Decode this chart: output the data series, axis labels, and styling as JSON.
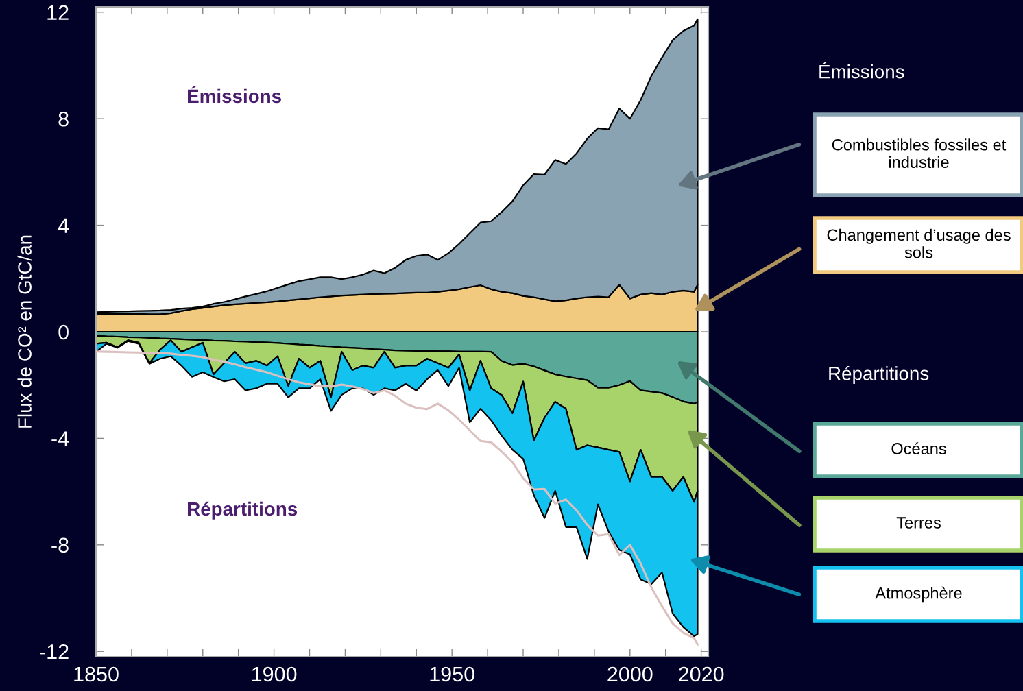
{
  "chart_data": [
    {
      "type": "area",
      "stacked": true,
      "ylabel": "Flux de CO² en GtC/an",
      "x": [
        1850,
        1853,
        1856,
        1859,
        1862,
        1865,
        1868,
        1871,
        1874,
        1877,
        1880,
        1883,
        1886,
        1889,
        1892,
        1895,
        1898,
        1901,
        1904,
        1907,
        1910,
        1913,
        1916,
        1919,
        1922,
        1925,
        1928,
        1931,
        1934,
        1937,
        1940,
        1943,
        1946,
        1949,
        1952,
        1955,
        1958,
        1961,
        1964,
        1967,
        1970,
        1973,
        1976,
        1979,
        1982,
        1985,
        1988,
        1991,
        1994,
        1997,
        2000,
        2003,
        2006,
        2009,
        2012,
        2015,
        2018,
        2019
      ],
      "xlim": [
        1850,
        2022
      ],
      "xticks": [
        1850,
        {
          "value": 1860,
          "label": null
        },
        {
          "value": 1870,
          "label": null
        },
        {
          "value": 1880,
          "label": null
        },
        {
          "value": 1890,
          "label": null
        },
        1900,
        {
          "value": 1910,
          "label": null
        },
        {
          "value": 1920,
          "label": null
        },
        {
          "value": 1930,
          "label": null
        },
        {
          "value": 1940,
          "label": null
        },
        1950,
        {
          "value": 1960,
          "label": null
        },
        {
          "value": 1970,
          "label": null
        },
        {
          "value": 1980,
          "label": null
        },
        {
          "value": 1990,
          "label": null
        },
        2000,
        {
          "value": 2010,
          "label": null
        },
        2020
      ],
      "ylim": [
        -12.2,
        12.2
      ],
      "yticks": [
        -12,
        -8,
        -4,
        0,
        4,
        8,
        12
      ],
      "legend": "right",
      "series": [
        {
          "name": "Changement d’usage des sols",
          "color": "#f1c97f",
          "values": [
            0.67,
            0.67,
            0.67,
            0.67,
            0.67,
            0.66,
            0.66,
            0.7,
            0.78,
            0.85,
            0.9,
            0.95,
            1.0,
            1.03,
            1.06,
            1.09,
            1.11,
            1.14,
            1.18,
            1.22,
            1.26,
            1.3,
            1.33,
            1.36,
            1.38,
            1.4,
            1.42,
            1.43,
            1.44,
            1.46,
            1.47,
            1.47,
            1.5,
            1.55,
            1.6,
            1.68,
            1.75,
            1.6,
            1.5,
            1.45,
            1.35,
            1.3,
            1.22,
            1.15,
            1.18,
            1.25,
            1.3,
            1.32,
            1.3,
            1.77,
            1.25,
            1.4,
            1.45,
            1.4,
            1.5,
            1.55,
            1.5,
            1.77
          ]
        },
        {
          "name": "Combustibles fossiles et industrie",
          "color": "#8aa3b3",
          "values": [
            0.07,
            0.08,
            0.09,
            0.1,
            0.11,
            0.13,
            0.14,
            0.12,
            0.09,
            0.05,
            0.05,
            0.1,
            0.12,
            0.19,
            0.27,
            0.33,
            0.41,
            0.51,
            0.6,
            0.68,
            0.71,
            0.75,
            0.72,
            0.62,
            0.67,
            0.75,
            0.88,
            0.77,
            0.96,
            1.24,
            1.38,
            1.43,
            1.2,
            1.4,
            1.7,
            2.02,
            2.35,
            2.55,
            3.0,
            3.45,
            4.15,
            4.62,
            4.68,
            5.3,
            5.12,
            5.45,
            5.95,
            6.33,
            6.3,
            6.61,
            6.75,
            7.3,
            8.15,
            8.9,
            9.45,
            9.75,
            10.0,
            9.97
          ]
        }
      ],
      "annotations": [
        "Émissions",
        "Émissions"
      ]
    },
    {
      "type": "area",
      "stacked": true,
      "x": [
        1850,
        1853,
        1856,
        1859,
        1862,
        1865,
        1868,
        1871,
        1874,
        1877,
        1880,
        1883,
        1886,
        1889,
        1892,
        1895,
        1898,
        1901,
        1904,
        1907,
        1910,
        1913,
        1916,
        1919,
        1922,
        1925,
        1928,
        1931,
        1934,
        1937,
        1940,
        1943,
        1946,
        1949,
        1952,
        1955,
        1958,
        1961,
        1964,
        1967,
        1970,
        1973,
        1976,
        1979,
        1982,
        1985,
        1988,
        1991,
        1994,
        1997,
        2000,
        2003,
        2006,
        2009,
        2012,
        2015,
        2018,
        2019
      ],
      "xlim": [
        1850,
        2022
      ],
      "ylim": [
        -12.2,
        12.2
      ],
      "tick_labels": false,
      "legend": "right",
      "series": [
        {
          "name": "Océans",
          "color": "#5aa898",
          "values": [
            -0.15,
            -0.17,
            -0.18,
            -0.2,
            -0.21,
            -0.23,
            -0.25,
            -0.26,
            -0.28,
            -0.3,
            -0.31,
            -0.33,
            -0.34,
            -0.36,
            -0.37,
            -0.39,
            -0.4,
            -0.42,
            -0.45,
            -0.48,
            -0.5,
            -0.53,
            -0.55,
            -0.58,
            -0.6,
            -0.62,
            -0.65,
            -0.67,
            -0.7,
            -0.71,
            -0.72,
            -0.72,
            -0.73,
            -0.73,
            -0.74,
            -0.74,
            -0.74,
            -0.75,
            -1.1,
            -1.25,
            -1.2,
            -1.3,
            -1.45,
            -1.6,
            -1.68,
            -1.75,
            -1.82,
            -2.1,
            -2.1,
            -2.0,
            -1.85,
            -2.2,
            -2.25,
            -2.3,
            -2.45,
            -2.62,
            -2.7,
            -2.64
          ]
        },
        {
          "name": "Terres",
          "color": "#a8d26a",
          "values": [
            -0.3,
            -0.24,
            -0.4,
            -0.12,
            -0.2,
            -0.95,
            -0.42,
            -0.06,
            -0.47,
            -0.28,
            -0.1,
            -1.27,
            -0.84,
            -0.39,
            -0.81,
            -0.7,
            -0.87,
            -0.5,
            -1.58,
            -0.53,
            -0.85,
            -0.56,
            -1.91,
            -0.17,
            -0.84,
            -0.65,
            -0.7,
            -0.08,
            -0.65,
            -0.56,
            -0.55,
            -0.29,
            -0.45,
            -0.62,
            -0.11,
            -1.47,
            -0.35,
            -1.37,
            -1.28,
            -1.81,
            -0.67,
            -2.78,
            -1.78,
            -1.03,
            -1.21,
            -2.68,
            -2.44,
            -2.24,
            -2.33,
            -2.51,
            -3.77,
            -2.23,
            -3.2,
            -3.15,
            -3.52,
            -2.83,
            -3.69,
            -3.33
          ]
        },
        {
          "name": "Atmosphère",
          "color": "#14c2ef",
          "values": [
            -0.3,
            -0.04,
            -0.02,
            -0.03,
            -0.04,
            -0.02,
            -0.34,
            -0.6,
            -0.52,
            -1.11,
            -1.11,
            -0.1,
            -0.68,
            -1.03,
            -1.02,
            -1.03,
            -0.68,
            -1.03,
            -0.43,
            -1.11,
            -0.77,
            -0.69,
            -0.51,
            -1.62,
            -0.68,
            -0.85,
            -1.02,
            -1.37,
            -0.85,
            -0.68,
            -0.94,
            -0.77,
            -0.26,
            -0.69,
            -0.5,
            -1.19,
            -1.8,
            -1.2,
            -1.53,
            -1.37,
            -2.9,
            -2.06,
            -3.76,
            -3.34,
            -4.44,
            -2.9,
            -4.27,
            -2.14,
            -3.07,
            -3.68,
            -2.74,
            -4.87,
            -4.02,
            -3.59,
            -4.61,
            -5.64,
            -5.04,
            -5.38
          ]
        },
        {
          "type": "line",
          "color": "#dcc0c0",
          "values": [
            -0.74,
            -0.75,
            -0.76,
            -0.77,
            -0.78,
            -0.79,
            -0.8,
            -0.82,
            -0.87,
            -0.9,
            -0.95,
            -1.05,
            -1.12,
            -1.22,
            -1.33,
            -1.42,
            -1.52,
            -1.65,
            -1.78,
            -1.9,
            -1.97,
            -2.05,
            -2.05,
            -1.98,
            -2.05,
            -2.15,
            -2.3,
            -2.2,
            -2.4,
            -2.7,
            -2.85,
            -2.9,
            -2.7,
            -2.95,
            -3.3,
            -3.7,
            -4.1,
            -4.15,
            -4.5,
            -4.9,
            -5.5,
            -5.92,
            -5.9,
            -6.45,
            -6.3,
            -6.7,
            -7.25,
            -7.65,
            -7.6,
            -8.38,
            -8.0,
            -8.7,
            -9.6,
            -10.3,
            -10.95,
            -11.3,
            -11.5,
            -11.74
          ]
        }
      ],
      "annotations": [
        "Répartitions",
        "Répartitions"
      ]
    }
  ]
}
